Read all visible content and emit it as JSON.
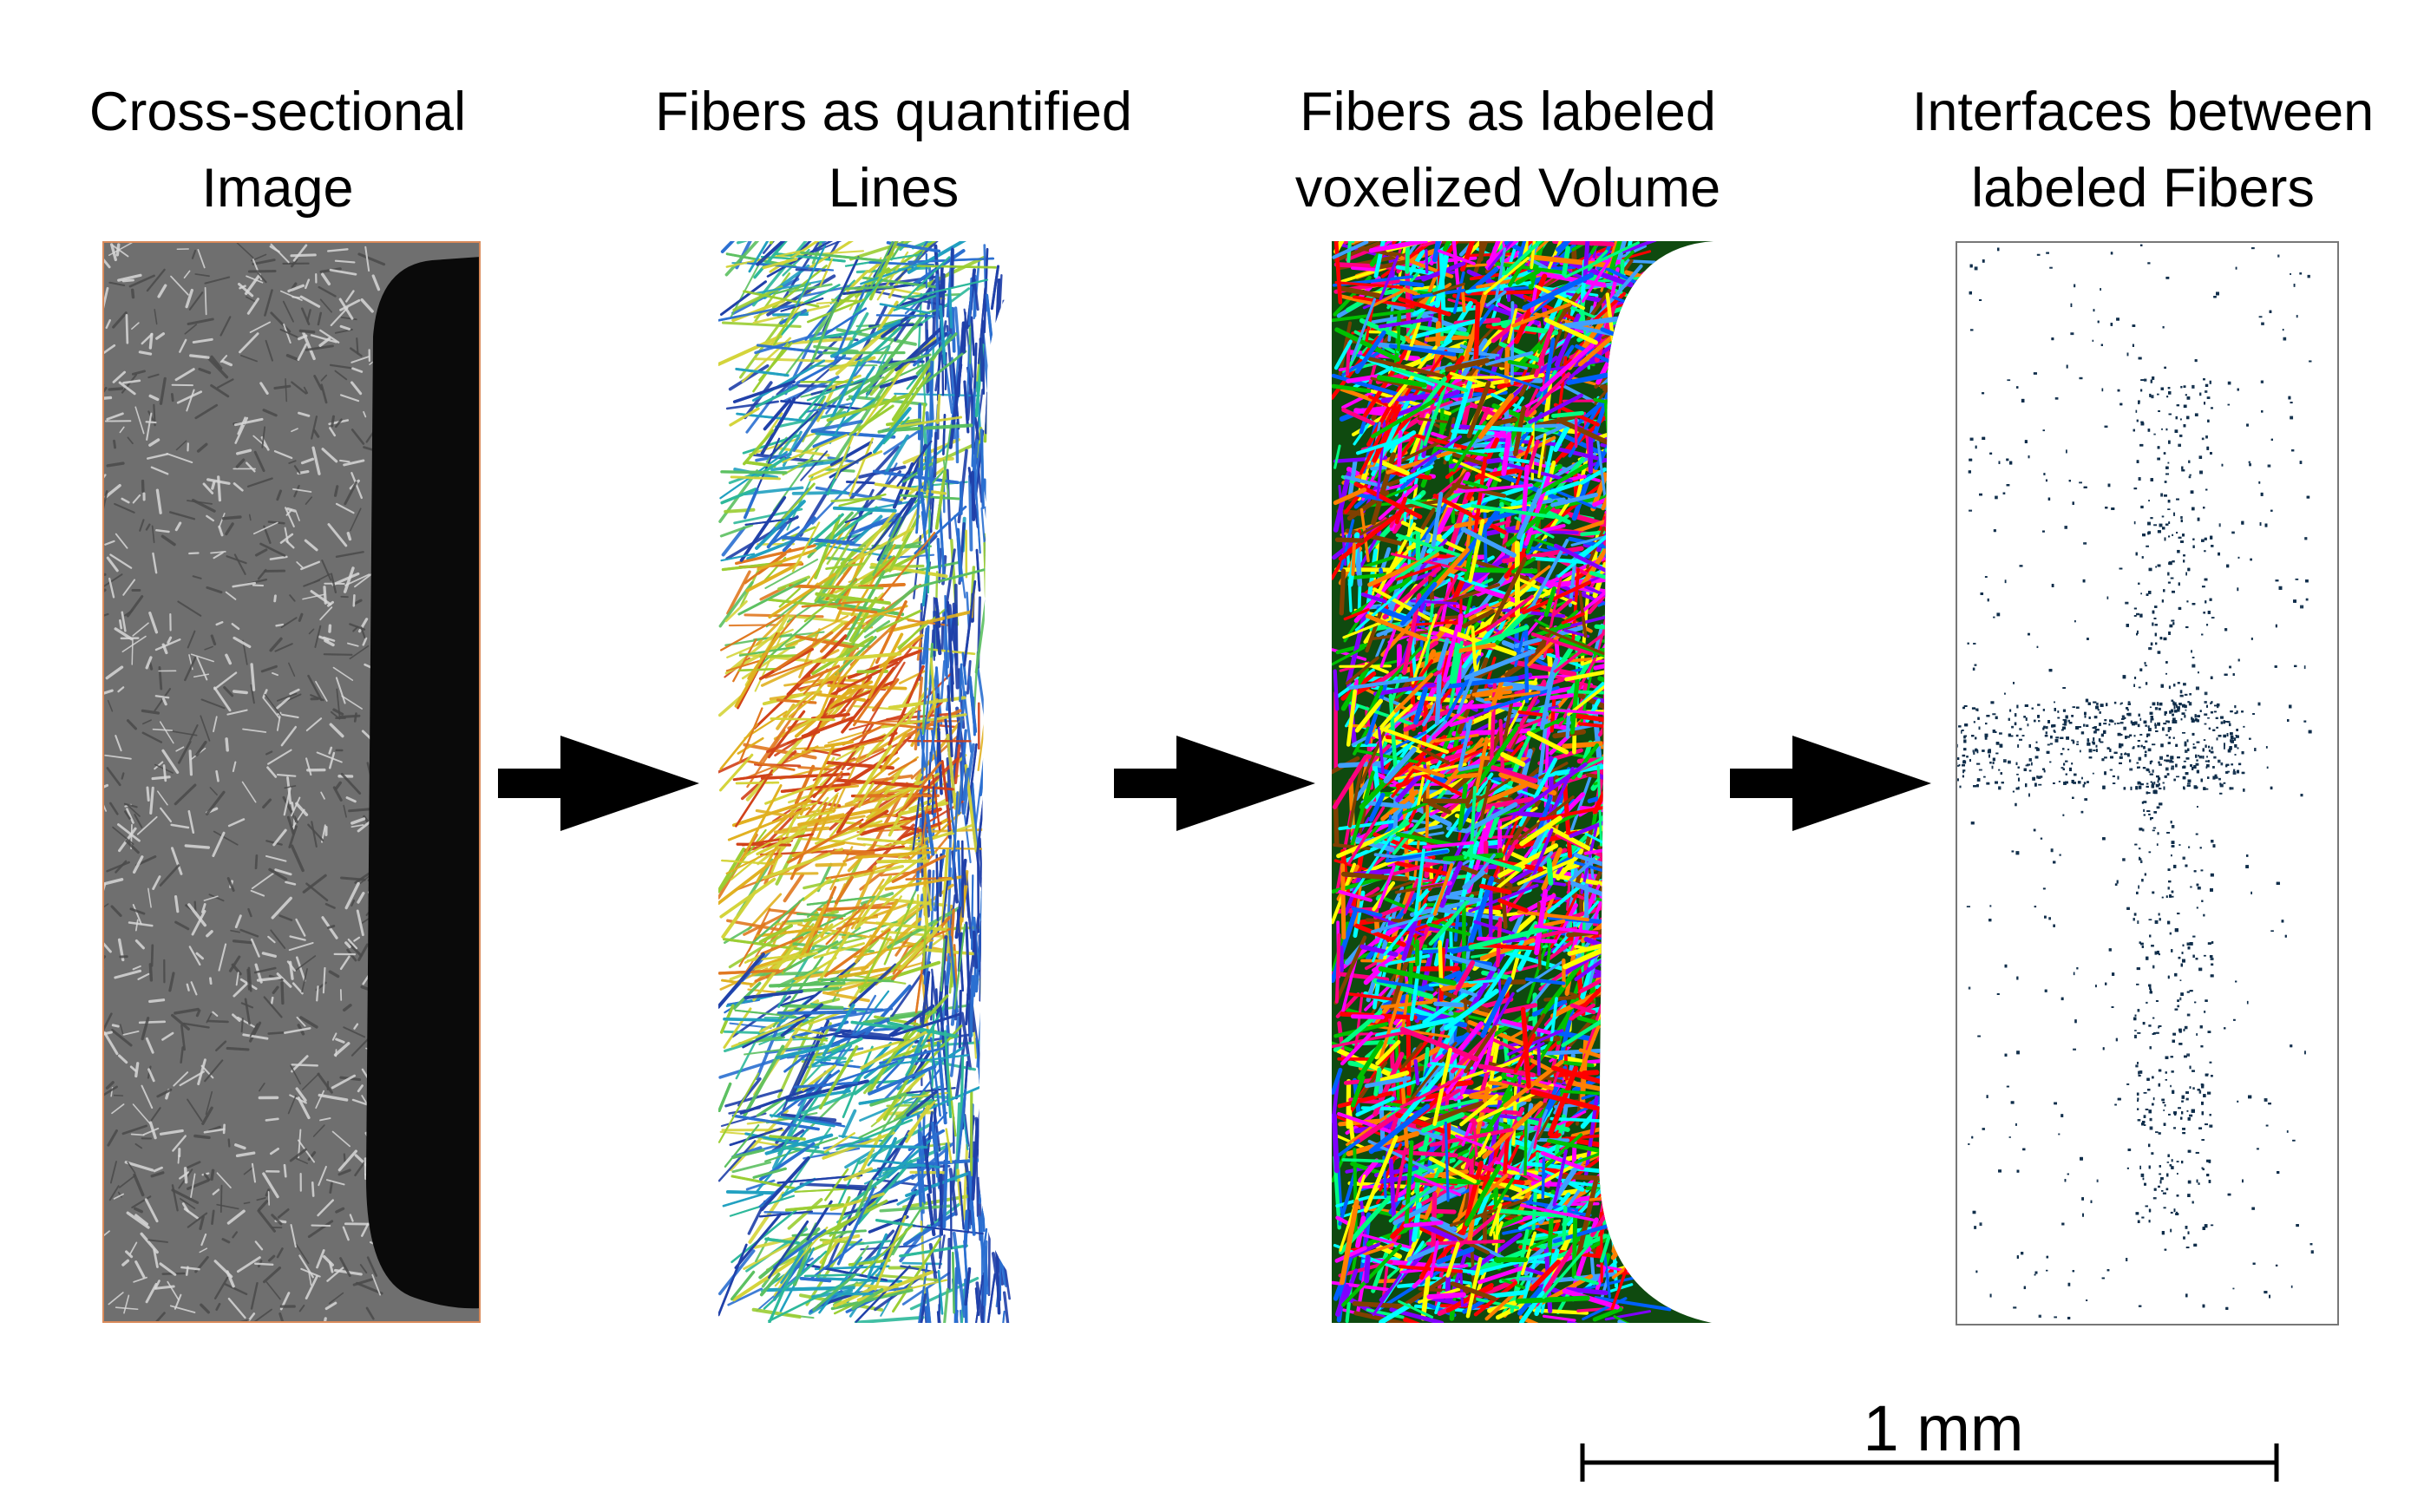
{
  "steps": [
    {
      "title_line1": "Cross-sectional",
      "title_line2": "Image"
    },
    {
      "title_line1": "Fibers as quantified",
      "title_line2": "Lines"
    },
    {
      "title_line1": "Fibers as labeled",
      "title_line2": "voxelized Volume"
    },
    {
      "title_line1": "Interfaces between",
      "title_line2": "labeled Fibers"
    }
  ],
  "scale_bar": {
    "label": "1 mm"
  },
  "colors": {
    "ct_background": "#6f6f6f",
    "ct_dark_region": "#0a0a0a",
    "ct_border": "#d98a5a",
    "interface_dots": "#0f2d4a",
    "arrow": "#000000"
  }
}
